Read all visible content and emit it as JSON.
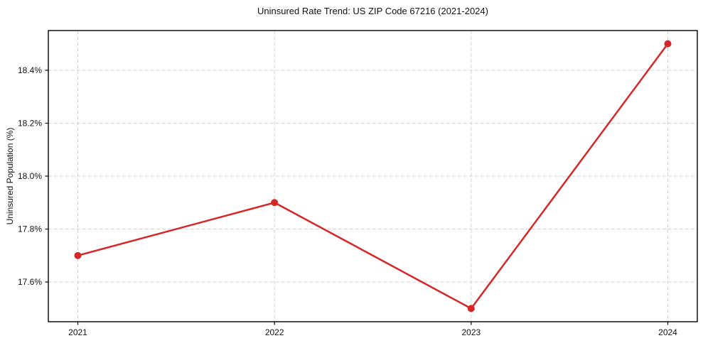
{
  "chart_data": {
    "type": "line",
    "title": "Uninsured Rate Trend: US ZIP Code 67216 (2021-2024)",
    "xlabel": "",
    "ylabel": "Uninsured Population (%)",
    "x": [
      2021,
      2022,
      2023,
      2024
    ],
    "x_tick_labels": [
      "2021",
      "2022",
      "2023",
      "2024"
    ],
    "series": [
      {
        "name": "Uninsured rate",
        "values": [
          17.7,
          17.9,
          17.5,
          18.5
        ],
        "color": "#d62728",
        "marker": "circle"
      }
    ],
    "y_ticks": [
      17.6,
      17.8,
      18.0,
      18.2,
      18.4
    ],
    "y_tick_labels": [
      "17.6%",
      "17.8%",
      "18.0%",
      "18.2%",
      "18.4%"
    ],
    "xlim": [
      2020.85,
      2024.15
    ],
    "ylim": [
      17.45,
      18.55
    ],
    "grid": true,
    "grid_style": "dashed",
    "grid_color": "#d2d2d2",
    "axes_edge_color": "#000000",
    "tick_color": "#000000",
    "text_color": "#111111",
    "background_color": "#ffffff",
    "legend": "none"
  }
}
